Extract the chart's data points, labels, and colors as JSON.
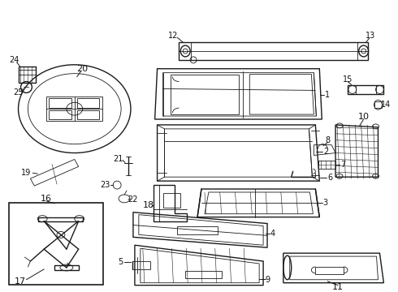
{
  "bg_color": "#ffffff",
  "line_color": "#1a1a1a",
  "text_color": "#111111",
  "fig_width": 4.9,
  "fig_height": 3.6,
  "dpi": 100
}
